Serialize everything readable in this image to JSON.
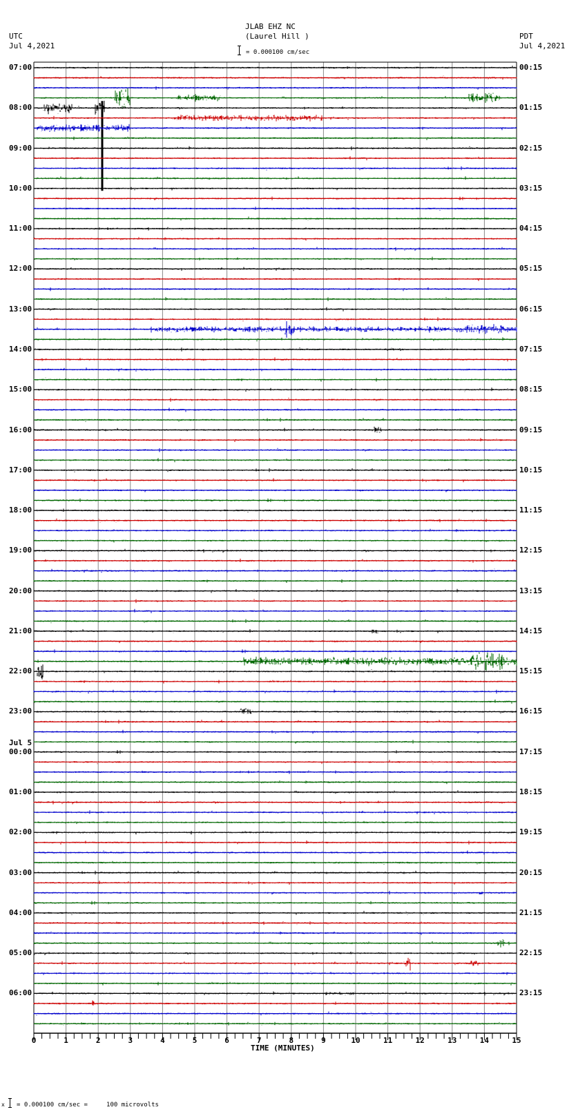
{
  "header": {
    "station": "JLAB EHZ NC",
    "location": "(Laurel Hill )",
    "scale_text": "= 0.000100 cm/sec",
    "left_tz": "UTC",
    "left_date": "Jul 4,2021",
    "right_tz": "PDT",
    "right_date": "Jul 4,2021"
  },
  "footer": {
    "scale_text": "= 0.000100 cm/sec =     100 microvolts",
    "marker": "x"
  },
  "colors": {
    "trace_cycle": [
      "#000000",
      "#cc0000",
      "#0000cc",
      "#006600"
    ],
    "grid": "#888888"
  },
  "chart_data": {
    "type": "line",
    "title": "JLAB EHZ NC (Laurel Hill ) helicorder",
    "subtitle": "= 0.000100 cm/sec",
    "xlabel": "TIME (MINUTES)",
    "ylabel": "",
    "xlim": [
      0,
      15
    ],
    "x_ticks": [
      "0",
      "1",
      "2",
      "3",
      "4",
      "5",
      "6",
      "7",
      "8",
      "9",
      "10",
      "11",
      "12",
      "13",
      "14",
      "15"
    ],
    "rows_per_hour": 4,
    "minutes_per_row": 15,
    "left_labels": [
      {
        "row": 0,
        "text": "07:00"
      },
      {
        "row": 4,
        "text": "08:00"
      },
      {
        "row": 8,
        "text": "09:00"
      },
      {
        "row": 12,
        "text": "10:00"
      },
      {
        "row": 16,
        "text": "11:00"
      },
      {
        "row": 20,
        "text": "12:00"
      },
      {
        "row": 24,
        "text": "13:00"
      },
      {
        "row": 28,
        "text": "14:00"
      },
      {
        "row": 32,
        "text": "15:00"
      },
      {
        "row": 36,
        "text": "16:00"
      },
      {
        "row": 40,
        "text": "17:00"
      },
      {
        "row": 44,
        "text": "18:00"
      },
      {
        "row": 48,
        "text": "19:00"
      },
      {
        "row": 52,
        "text": "20:00"
      },
      {
        "row": 56,
        "text": "21:00"
      },
      {
        "row": 60,
        "text": "22:00"
      },
      {
        "row": 64,
        "text": "23:00"
      },
      {
        "row": 68,
        "text": "00:00",
        "date": "Jul 5"
      },
      {
        "row": 72,
        "text": "01:00"
      },
      {
        "row": 76,
        "text": "02:00"
      },
      {
        "row": 80,
        "text": "03:00"
      },
      {
        "row": 84,
        "text": "04:00"
      },
      {
        "row": 88,
        "text": "05:00"
      },
      {
        "row": 92,
        "text": "06:00"
      }
    ],
    "right_labels": [
      {
        "row": 0,
        "text": "00:15"
      },
      {
        "row": 4,
        "text": "01:15"
      },
      {
        "row": 8,
        "text": "02:15"
      },
      {
        "row": 12,
        "text": "03:15"
      },
      {
        "row": 16,
        "text": "04:15"
      },
      {
        "row": 20,
        "text": "05:15"
      },
      {
        "row": 24,
        "text": "06:15"
      },
      {
        "row": 28,
        "text": "07:15"
      },
      {
        "row": 32,
        "text": "08:15"
      },
      {
        "row": 36,
        "text": "09:15"
      },
      {
        "row": 40,
        "text": "10:15"
      },
      {
        "row": 44,
        "text": "11:15"
      },
      {
        "row": 48,
        "text": "12:15"
      },
      {
        "row": 52,
        "text": "13:15"
      },
      {
        "row": 56,
        "text": "14:15"
      },
      {
        "row": 60,
        "text": "15:15"
      },
      {
        "row": 64,
        "text": "16:15"
      },
      {
        "row": 68,
        "text": "17:15"
      },
      {
        "row": 72,
        "text": "18:15"
      },
      {
        "row": 76,
        "text": "19:15"
      },
      {
        "row": 80,
        "text": "20:15"
      },
      {
        "row": 84,
        "text": "21:15"
      },
      {
        "row": 88,
        "text": "22:15"
      },
      {
        "row": 92,
        "text": "23:15"
      }
    ],
    "events": [
      {
        "row": 3,
        "start_min": 2.5,
        "end_min": 3.0,
        "amp": 18
      },
      {
        "row": 3,
        "start_min": 4.4,
        "end_min": 5.8,
        "amp": 6
      },
      {
        "row": 3,
        "start_min": 13.5,
        "end_min": 14.5,
        "amp": 8
      },
      {
        "row": 4,
        "start_min": 0.3,
        "end_min": 1.2,
        "amp": 10
      },
      {
        "row": 4,
        "start_min": 1.9,
        "end_min": 2.2,
        "amp": 14
      },
      {
        "row": 4,
        "start_min": 2.1,
        "end_min": 2.15,
        "amp": 120,
        "spike": true
      },
      {
        "row": 5,
        "start_min": 4.3,
        "end_min": 9.0,
        "amp": 5
      },
      {
        "row": 6,
        "start_min": 0.1,
        "end_min": 3.0,
        "amp": 6
      },
      {
        "row": 26,
        "start_min": 3.6,
        "end_min": 15.0,
        "amp": 5
      },
      {
        "row": 26,
        "start_min": 7.8,
        "end_min": 8.1,
        "amp": 28
      },
      {
        "row": 26,
        "start_min": 13.4,
        "end_min": 14.6,
        "amp": 8
      },
      {
        "row": 28,
        "start_min": 11.1,
        "end_min": 11.4,
        "amp": 3
      },
      {
        "row": 36,
        "start_min": 10.5,
        "end_min": 10.8,
        "amp": 6
      },
      {
        "row": 56,
        "start_min": 10.5,
        "end_min": 10.7,
        "amp": 4
      },
      {
        "row": 59,
        "start_min": 6.5,
        "end_min": 15.0,
        "amp": 7
      },
      {
        "row": 59,
        "start_min": 13.5,
        "end_min": 14.6,
        "amp": 14
      },
      {
        "row": 60,
        "start_min": 0.1,
        "end_min": 0.3,
        "amp": 16
      },
      {
        "row": 64,
        "start_min": 6.4,
        "end_min": 6.8,
        "amp": 6
      },
      {
        "row": 82,
        "start_min": 13.8,
        "end_min": 14.0,
        "amp": 5
      },
      {
        "row": 87,
        "start_min": 14.4,
        "end_min": 14.6,
        "amp": 9
      },
      {
        "row": 89,
        "start_min": 11.5,
        "end_min": 11.7,
        "amp": 12
      },
      {
        "row": 89,
        "start_min": 13.5,
        "end_min": 13.8,
        "amp": 5
      },
      {
        "row": 92,
        "start_min": 9.0,
        "end_min": 10.0,
        "amp": 3
      },
      {
        "row": 93,
        "start_min": 1.8,
        "end_min": 1.9,
        "amp": 5
      }
    ],
    "legend": []
  }
}
